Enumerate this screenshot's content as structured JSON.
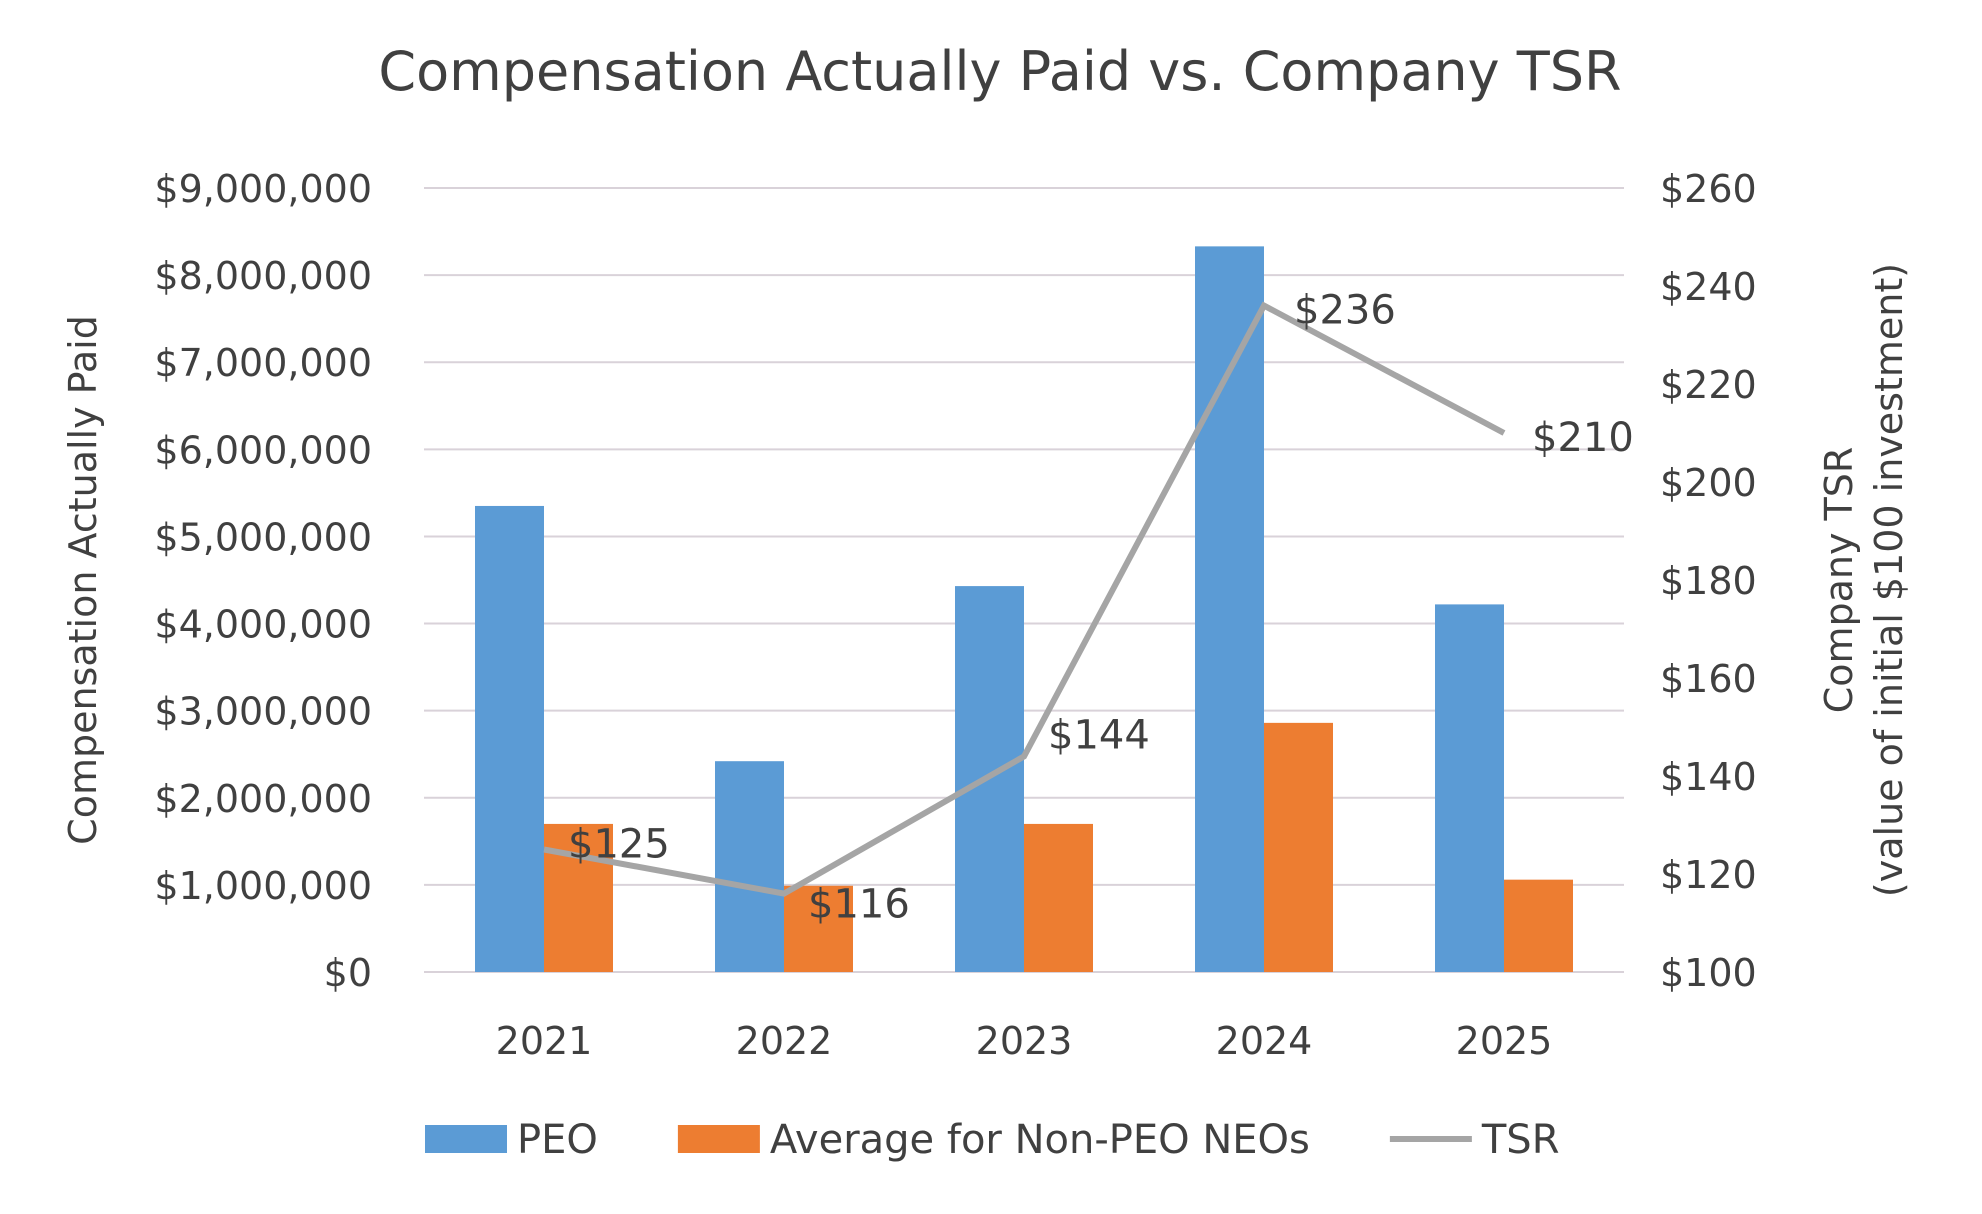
{
  "chart_data": {
    "type": "bar",
    "title": "Compensation Actually Paid vs. Company TSR",
    "categories": [
      "2021",
      "2022",
      "2023",
      "2024",
      "2025"
    ],
    "ylabel": "Compensation Actually Paid",
    "y2label_line1": "Company TSR",
    "y2label_line2": "(value of initial $100 investment)",
    "ylim": [
      0,
      9000000
    ],
    "y2lim": [
      100,
      260
    ],
    "yticks": [
      "$0",
      "$1,000,000",
      "$2,000,000",
      "$3,000,000",
      "$4,000,000",
      "$5,000,000",
      "$6,000,000",
      "$7,000,000",
      "$8,000,000",
      "$9,000,000"
    ],
    "y2ticks": [
      "$100",
      "$120",
      "$140",
      "$160",
      "$180",
      "$200",
      "$220",
      "$240",
      "$260"
    ],
    "grid": true,
    "legend_placement": "bottom",
    "series": [
      {
        "name": "PEO",
        "type": "bar",
        "axis": "left",
        "color": "#5b9bd5",
        "values": [
          5350000,
          2420000,
          4430000,
          8330000,
          4220000
        ]
      },
      {
        "name": "Average for Non-PEO NEOs",
        "type": "bar",
        "axis": "left",
        "color": "#ed7d31",
        "values": [
          1700000,
          990000,
          1700000,
          2860000,
          1060000
        ]
      },
      {
        "name": "TSR",
        "type": "line",
        "axis": "right",
        "color": "#a5a5a5",
        "values": [
          125,
          116,
          144,
          236,
          210
        ],
        "labels": [
          "$125",
          "$116",
          "$144",
          "$236",
          "$210"
        ]
      }
    ]
  }
}
